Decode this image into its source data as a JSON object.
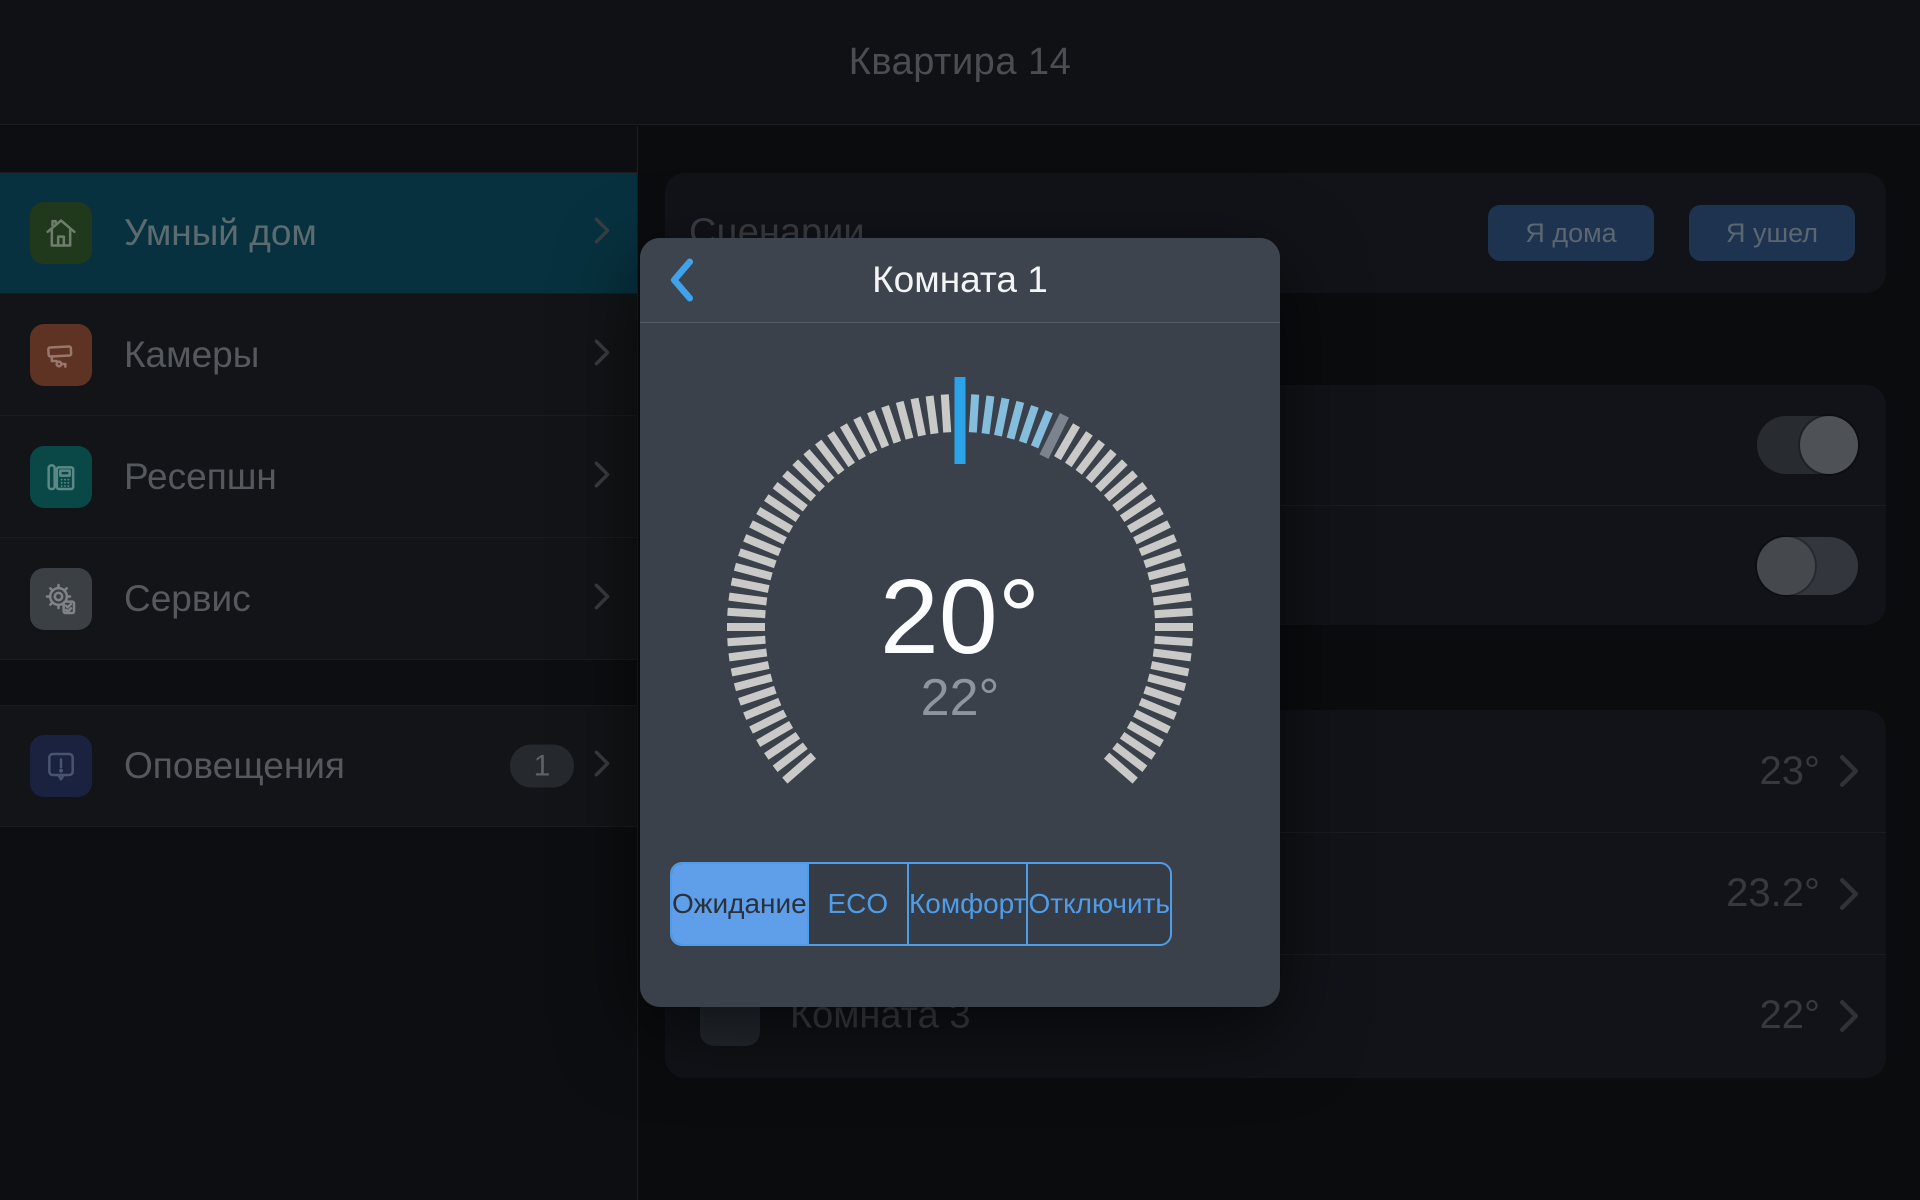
{
  "header": {
    "title": "Квартира 14"
  },
  "sidebar": {
    "items": [
      {
        "label": "Умный дом",
        "icon": "home-icon",
        "active": true
      },
      {
        "label": "Камеры",
        "icon": "camera-icon",
        "active": false
      },
      {
        "label": "Ресепшн",
        "icon": "phone-icon",
        "active": false
      },
      {
        "label": "Сервис",
        "icon": "gear-icon",
        "active": false
      }
    ],
    "alerts": {
      "label": "Оповещения",
      "icon": "alert-icon",
      "badge": "1"
    }
  },
  "main": {
    "scenarios_title": "Сценарии",
    "home_button": "Я дома",
    "away_button": "Я ушел",
    "toggles": [
      {
        "on": true
      },
      {
        "on": false
      }
    ],
    "rooms": [
      {
        "label": "",
        "temp": "23°"
      },
      {
        "label": "",
        "temp": "23.2°"
      },
      {
        "label": "Комната 3",
        "temp": "22°"
      }
    ]
  },
  "modal": {
    "title": "Комната 1",
    "setpoint": "20°",
    "current": "22°",
    "modes": [
      {
        "label": "Ожидание",
        "selected": true
      },
      {
        "label": "ECO",
        "selected": false
      },
      {
        "label": "Комфорт",
        "selected": false
      },
      {
        "label": "Отключить",
        "selected": false
      }
    ],
    "gauge": {
      "start_angle": -131.25,
      "end_angle": 131.25,
      "step": 3.75,
      "indicator_angle": 0,
      "marker_angle": 26.25,
      "active_from": 3.75,
      "active_to": 22.5,
      "tick_color": "#c9c9c7",
      "active_color": "#85bedd",
      "marker_color": "#7b838e",
      "indicator_color": "#2aa3e9"
    }
  },
  "colors": {
    "accent_blue": "#4f9ce9",
    "selected_teal": "#07313e"
  }
}
